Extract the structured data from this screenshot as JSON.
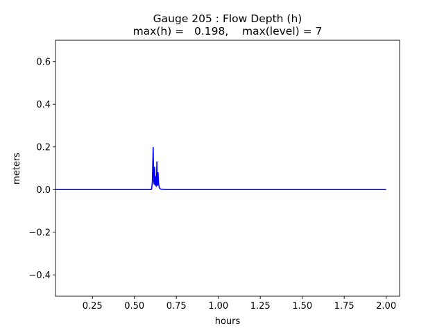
{
  "chart_data": {
    "type": "line",
    "title": "Gauge 205 : Flow Depth (h)",
    "subtitle": "max(h) =   0.198,    max(level) = 7",
    "xlabel": "hours",
    "ylabel": "meters",
    "xlim": [
      0.03,
      2.08
    ],
    "ylim": [
      -0.5,
      0.7
    ],
    "xticks": [
      0.25,
      0.5,
      0.75,
      1.0,
      1.25,
      1.5,
      1.75,
      2.0
    ],
    "xtick_labels": [
      "0.25",
      "0.50",
      "0.75",
      "1.00",
      "1.25",
      "1.50",
      "1.75",
      "2.00"
    ],
    "yticks": [
      -0.4,
      -0.2,
      0.0,
      0.2,
      0.4,
      0.6
    ],
    "ytick_labels": [
      "−0.4",
      "−0.2",
      "0.0",
      "0.2",
      "0.4",
      "0.6"
    ],
    "grid": false,
    "series": [
      {
        "color": "#0000ff",
        "x": [
          0.03,
          0.2,
          0.4,
          0.6,
          0.603,
          0.607,
          0.612,
          0.615,
          0.618,
          0.621,
          0.623,
          0.625,
          0.628,
          0.631,
          0.634,
          0.636,
          0.638,
          0.641,
          0.644,
          0.646,
          0.648,
          0.651,
          0.655,
          0.66,
          0.67,
          0.7,
          0.9,
          1.2,
          1.5,
          1.8,
          2.0
        ],
        "y": [
          0.0,
          0.0,
          0.0,
          0.0,
          0.005,
          0.035,
          0.198,
          0.04,
          0.025,
          0.105,
          0.04,
          0.02,
          0.06,
          0.015,
          0.13,
          0.05,
          0.02,
          0.08,
          0.03,
          0.02,
          0.01,
          0.006,
          0.003,
          0.002,
          0.001,
          0.0,
          0.0,
          0.0,
          0.0,
          0.0,
          0.0
        ]
      }
    ]
  }
}
